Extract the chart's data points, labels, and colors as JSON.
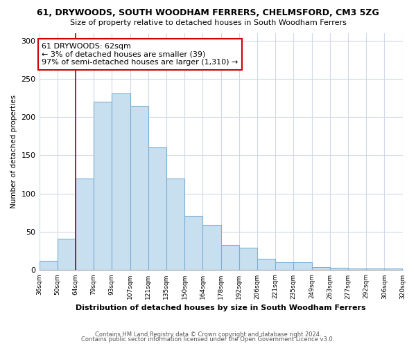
{
  "title1": "61, DRYWOODS, SOUTH WOODHAM FERRERS, CHELMSFORD, CM3 5ZG",
  "title2": "Size of property relative to detached houses in South Woodham Ferrers",
  "xlabel": "Distribution of detached houses by size in South Woodham Ferrers",
  "ylabel": "Number of detached properties",
  "bin_labels": [
    "36sqm",
    "50sqm",
    "64sqm",
    "79sqm",
    "93sqm",
    "107sqm",
    "121sqm",
    "135sqm",
    "150sqm",
    "164sqm",
    "178sqm",
    "192sqm",
    "206sqm",
    "221sqm",
    "235sqm",
    "249sqm",
    "263sqm",
    "277sqm",
    "292sqm",
    "306sqm",
    "320sqm"
  ],
  "bar_heights": [
    12,
    41,
    120,
    220,
    231,
    215,
    160,
    120,
    71,
    59,
    33,
    29,
    15,
    10,
    10,
    4,
    3,
    2,
    2,
    2
  ],
  "bar_color": "#c8dff0",
  "bar_edge_color": "#7ab0d4",
  "marker_line_color": "#aa0000",
  "annotation_line1": "61 DRYWOODS: 62sqm",
  "annotation_line2": "← 3% of detached houses are smaller (39)",
  "annotation_line3": "97% of semi-detached houses are larger (1,310) →",
  "annotation_box_color": "#ffffff",
  "annotation_box_edge": "#cc0000",
  "ylim": [
    0,
    310
  ],
  "yticks": [
    0,
    50,
    100,
    150,
    200,
    250,
    300
  ],
  "footer1": "Contains HM Land Registry data © Crown copyright and database right 2024.",
  "footer2": "Contains public sector information licensed under the Open Government Licence v3.0.",
  "bg_color": "#ffffff",
  "plot_bg_color": "#ffffff",
  "grid_color": "#d0d8e8"
}
